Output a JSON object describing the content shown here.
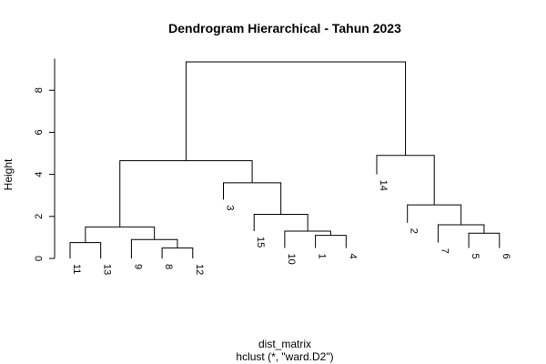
{
  "chart_data": {
    "type": "dendrogram",
    "title": "Dendrogram Hierarchical - Tahun 2023",
    "xlabel": "dist_matrix",
    "sublabel": "hclust (*, \"ward.D2\")",
    "ylabel": "Height",
    "ylim": [
      0,
      9.5
    ],
    "yticks": [
      0,
      2,
      4,
      6,
      8
    ],
    "leaves": [
      {
        "label": "11",
        "height": 0
      },
      {
        "label": "13",
        "height": 0
      },
      {
        "label": "9",
        "height": 0
      },
      {
        "label": "8",
        "height": 0
      },
      {
        "label": "12",
        "height": 0
      },
      {
        "label": "3",
        "height": 2.8
      },
      {
        "label": "15",
        "height": 1.3
      },
      {
        "label": "10",
        "height": 0.5
      },
      {
        "label": "1",
        "height": 0.5
      },
      {
        "label": "4",
        "height": 0.5
      },
      {
        "label": "14",
        "height": 4.0
      },
      {
        "label": "2",
        "height": 1.7
      },
      {
        "label": "7",
        "height": 0.75
      },
      {
        "label": "5",
        "height": 0.5
      },
      {
        "label": "6",
        "height": 0.5
      }
    ],
    "merges": [
      {
        "left": "L4",
        "right": "L5",
        "height": 0.5
      },
      {
        "left": "L3",
        "right": "M1",
        "height": 0.9
      },
      {
        "left": "L1",
        "right": "L2",
        "height": 0.75
      },
      {
        "left": "M3",
        "right": "M2",
        "height": 1.5
      },
      {
        "left": "L9",
        "right": "L10",
        "height": 1.1
      },
      {
        "left": "L8",
        "right": "M5",
        "height": 1.3
      },
      {
        "left": "L7",
        "right": "M6",
        "height": 2.1
      },
      {
        "left": "L6",
        "right": "M7",
        "height": 3.6
      },
      {
        "left": "M4",
        "right": "M8",
        "height": 4.65
      },
      {
        "left": "L14",
        "right": "L15",
        "height": 1.2
      },
      {
        "left": "L13",
        "right": "M10",
        "height": 1.6
      },
      {
        "left": "L12",
        "right": "M11",
        "height": 2.55
      },
      {
        "left": "L11",
        "right": "M12",
        "height": 4.9
      },
      {
        "left": "M9",
        "right": "M13",
        "height": 9.35
      }
    ]
  }
}
